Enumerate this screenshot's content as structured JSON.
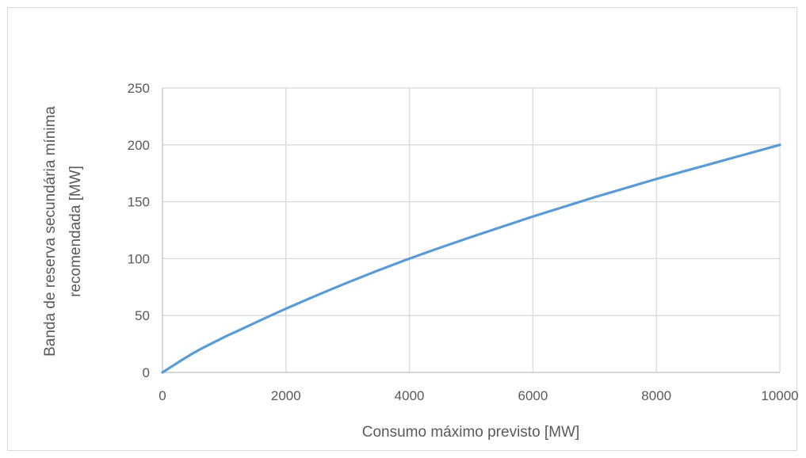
{
  "chart_data": {
    "type": "line",
    "title": "",
    "xlabel": "Consumo máximo previsto [MW]",
    "ylabel_line1": "Banda de reserva secundária mínima",
    "ylabel_line2": "recomendada [MW]",
    "xlim": [
      0,
      10000
    ],
    "ylim": [
      0,
      250
    ],
    "x_ticks": [
      0,
      2000,
      4000,
      6000,
      8000,
      10000
    ],
    "y_ticks": [
      0,
      50,
      100,
      150,
      200,
      250
    ],
    "grid": true,
    "legend": "none",
    "series": [
      {
        "color": "#5b9bd5",
        "x": [
          0,
          500,
          1000,
          1200,
          2000,
          3000,
          4000,
          5000,
          6000,
          7000,
          8000,
          9000,
          10000
        ],
        "y": [
          0,
          17,
          31,
          36,
          56,
          79,
          100,
          119,
          137,
          154,
          170,
          185,
          200
        ]
      }
    ]
  },
  "colors": {
    "grid": "#d9d9d9",
    "axis": "#bfbfbf",
    "frame": "#d9d9d9"
  }
}
